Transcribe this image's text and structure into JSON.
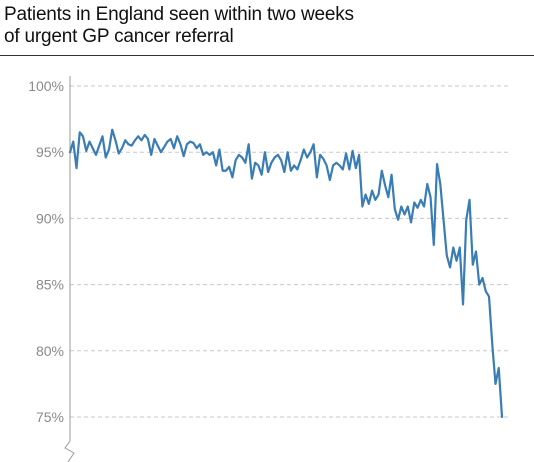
{
  "header": {
    "title_line1": "Patients in England seen within two weeks",
    "title_line2": "of urgent GP cancer referral"
  },
  "colors": {
    "line": "#3a7db5",
    "grid": "#c8c8c8",
    "tick_text": "#8a8a8a",
    "rule": "#333333"
  },
  "chart_data": {
    "type": "line",
    "title": "Patients in England seen within two weeks of urgent GP cancer referral",
    "xlabel": "",
    "ylabel": "",
    "ylim": [
      75,
      100
    ],
    "yticks": [
      100,
      95,
      90,
      85,
      80,
      75
    ],
    "ytick_labels": [
      "100%",
      "95%",
      "90%",
      "85%",
      "80%",
      "75%"
    ],
    "grid": "horizontal dashed",
    "series": [
      {
        "values": [
          95.0,
          95.8,
          93.8,
          96.5,
          96.2,
          95.1,
          95.8,
          95.3,
          94.8,
          95.5,
          96.2,
          94.6,
          95.2,
          96.7,
          95.9,
          94.9,
          95.3,
          95.9,
          95.6,
          95.5,
          95.9,
          96.2,
          95.9,
          96.3,
          96.0,
          94.8,
          96.0,
          95.5,
          95.0,
          95.4,
          95.8,
          96.0,
          95.3,
          96.2,
          95.6,
          94.7,
          95.6,
          95.8,
          95.7,
          95.3,
          95.6,
          94.8,
          95.0,
          94.8,
          95.0,
          94.0,
          95.2,
          93.6,
          93.6,
          93.9,
          93.1,
          94.4,
          94.8,
          94.6,
          94.2,
          95.6,
          93.0,
          94.2,
          94.0,
          93.3,
          95.0,
          93.5,
          94.2,
          94.6,
          94.8,
          94.4,
          93.5,
          95.0,
          93.6,
          94.0,
          93.7,
          94.4,
          95.2,
          94.6,
          95.0,
          95.6,
          93.1,
          94.8,
          94.5,
          94.0,
          92.9,
          94.0,
          94.2,
          94.0,
          93.7,
          94.9,
          93.7,
          95.1,
          93.8,
          94.8,
          90.9,
          91.8,
          91.1,
          92.1,
          91.4,
          91.8,
          93.6,
          92.5,
          91.6,
          93.3,
          90.7,
          89.9,
          90.9,
          90.3,
          90.9,
          89.7,
          91.2,
          90.8,
          91.4,
          90.9,
          92.6,
          91.6,
          88.0,
          94.1,
          92.6,
          89.9,
          87.2,
          86.3,
          87.8,
          86.8,
          87.8,
          83.5,
          89.9,
          91.4,
          86.5,
          87.5,
          85.0,
          85.5,
          84.5,
          84.1,
          80.5,
          77.5,
          78.7,
          75.0
        ]
      }
    ]
  }
}
